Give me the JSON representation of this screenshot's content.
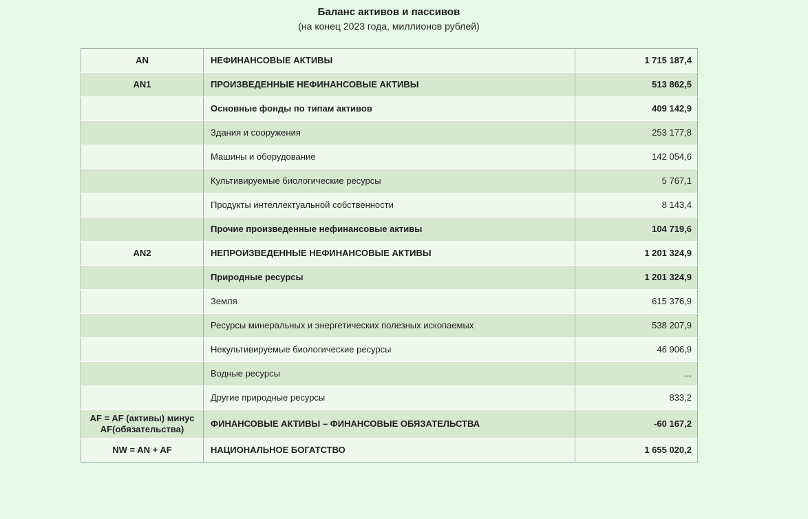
{
  "title": "Баланс активов и пассивов",
  "subtitle": "(на конец 2023 года, миллионов рублей)",
  "colors": {
    "page_bg": "#e4fae4",
    "row_light": "#eff8ec",
    "row_green": "#d5e9cf",
    "border": "#a4b3a4",
    "text": "#212121"
  },
  "table": {
    "columns": [
      "code",
      "name",
      "value"
    ],
    "rows": [
      {
        "code": "AN",
        "name": "НЕФИНАНСОВЫЕ АКТИВЫ",
        "value": "1 715 187,4",
        "bold": true
      },
      {
        "code": "AN1",
        "name": "ПРОИЗВЕДЕННЫЕ НЕФИНАНСОВЫЕ АКТИВЫ",
        "value": "513 862,5",
        "bold": true
      },
      {
        "code": "",
        "name": "Основные фонды по типам активов",
        "value": "409 142,9",
        "bold": true
      },
      {
        "code": "",
        "name": "Здания и сооружения",
        "value": "253 177,8",
        "bold": false
      },
      {
        "code": "",
        "name": "Машины и оборудование",
        "value": "142 054,6",
        "bold": false
      },
      {
        "code": "",
        "name": "Культивируемые биологические ресурсы",
        "value": "5 767,1",
        "bold": false
      },
      {
        "code": "",
        "name": "Продукты интеллектуальной собственности",
        "value": "8 143,4",
        "bold": false
      },
      {
        "code": "",
        "name": "Прочие произведенные нефинансовые активы",
        "value": "104 719,6",
        "bold": true
      },
      {
        "code": "AN2",
        "name": "НЕПРОИЗВЕДЕННЫЕ НЕФИНАНСОВЫЕ АКТИВЫ",
        "value": "1 201 324,9",
        "bold": true
      },
      {
        "code": "",
        "name": "Природные ресурсы",
        "value": "1 201 324,9",
        "bold": true
      },
      {
        "code": "",
        "name": "Земля",
        "value": "615 376,9",
        "bold": false
      },
      {
        "code": "",
        "name": "Ресурсы минеральных и энергетических полезных ископаемых",
        "value": "538 207,9",
        "bold": false
      },
      {
        "code": "",
        "name": "Некультивируемые биологические ресурсы",
        "value": "46 906,9",
        "bold": false
      },
      {
        "code": "",
        "name": "Водные ресурсы",
        "value": "...",
        "bold": false
      },
      {
        "code": "",
        "name": "Другие природные ресурсы",
        "value": "833,2",
        "bold": false
      },
      {
        "code": "AF = AF (активы) минус AF(обязательства)",
        "name": "ФИНАНСОВЫЕ АКТИВЫ – ФИНАНСОВЫЕ ОБЯЗАТЕЛЬСТВА",
        "value": "-60 167,2",
        "bold": true
      },
      {
        "code": "NW = AN + AF",
        "name": "НАЦИОНАЛЬНОЕ БОГАТСТВО",
        "value": "1 655 020,2",
        "bold": true
      }
    ]
  }
}
